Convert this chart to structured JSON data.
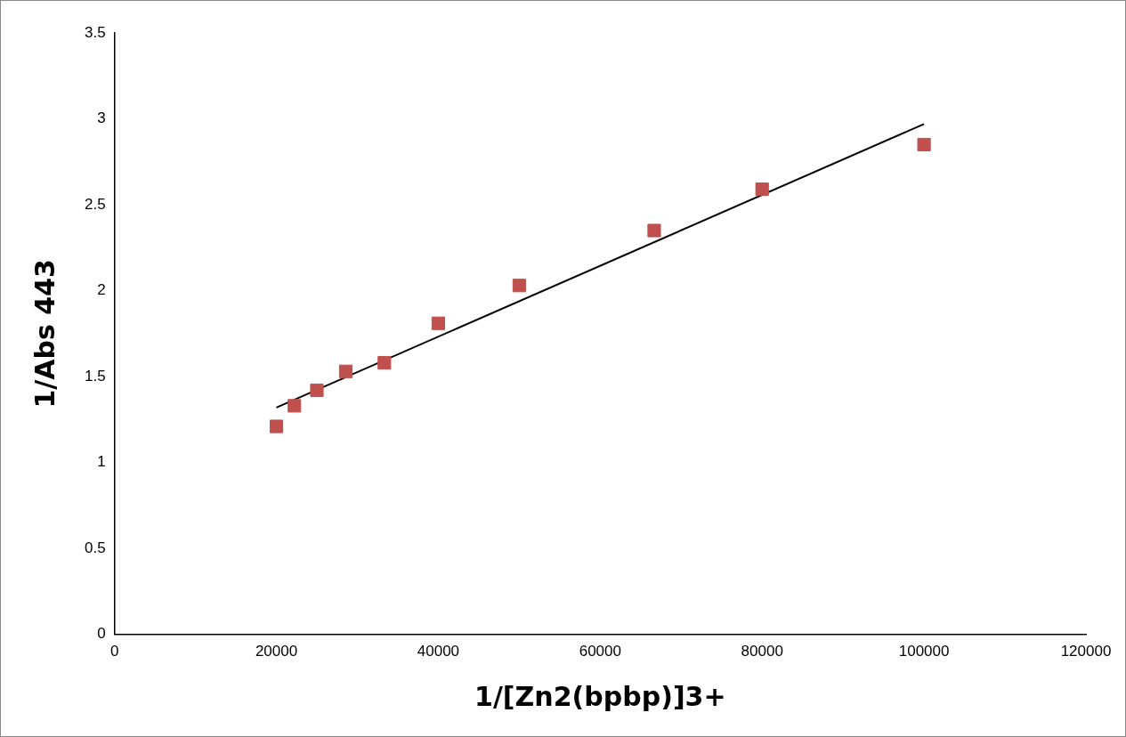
{
  "chart_data": {
    "type": "scatter",
    "xlabel": "1/[Zn2(bpbp)]3+",
    "ylabel": "1/Abs 443",
    "xlim": [
      0,
      120000
    ],
    "xticks": [
      0,
      20000,
      40000,
      60000,
      80000,
      100000,
      120000
    ],
    "ylim": [
      0,
      3.5
    ],
    "yticks": [
      0,
      0.5,
      1,
      1.5,
      2,
      2.5,
      3,
      3.5
    ],
    "grid": false,
    "legend": false,
    "marker": "square",
    "series": [
      {
        "type": "scatter",
        "color": "#c0504d",
        "x": [
          20000,
          22222,
          25000,
          28571,
          33333,
          40000,
          50000,
          66667,
          80000,
          100000
        ],
        "values": [
          1.21,
          1.33,
          1.42,
          1.53,
          1.58,
          1.81,
          2.03,
          2.35,
          2.59,
          2.85
        ]
      },
      {
        "type": "line",
        "color": "#000000",
        "marker": "none",
        "line_style": "solid",
        "x": [
          20000,
          100000
        ],
        "values": [
          1.32,
          2.97
        ]
      }
    ]
  }
}
